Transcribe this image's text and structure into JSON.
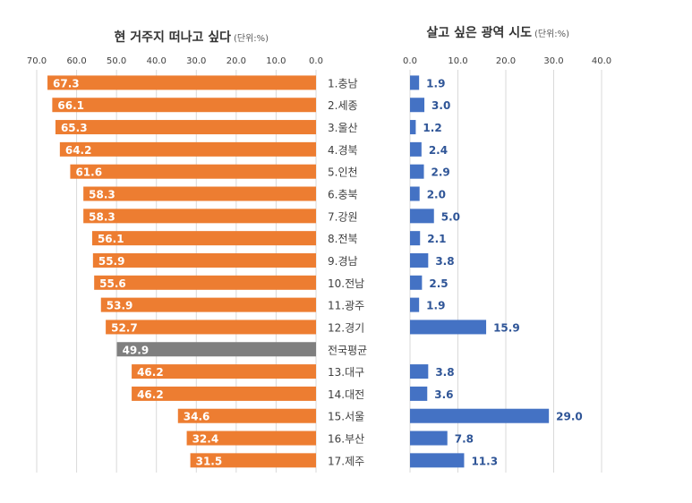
{
  "chart_data": [
    {
      "type": "bar",
      "orientation": "horizontal",
      "direction": "right-to-left",
      "title": "현 거주지 떠나고 싶다",
      "unit": "(단위:%)",
      "xlim": [
        0,
        70
      ],
      "ticks": [
        "70.0",
        "60.0",
        "50.0",
        "40.0",
        "30.0",
        "20.0",
        "10.0",
        "0.0"
      ],
      "tick_values": [
        70,
        60,
        50,
        40,
        30,
        20,
        10,
        0
      ],
      "categories": [
        "1.충남",
        "2.세종",
        "3.울산",
        "4.경북",
        "5.인천",
        "6.충북",
        "7.강원",
        "8.전북",
        "9.경남",
        "10.전남",
        "11.광주",
        "12.경기",
        "전국평균",
        "13.대구",
        "14.대전",
        "15.서울",
        "16.부산",
        "17.제주"
      ],
      "values": [
        67.3,
        66.1,
        65.3,
        64.2,
        61.6,
        58.3,
        58.3,
        56.1,
        55.9,
        55.6,
        53.9,
        52.7,
        49.9,
        46.2,
        46.2,
        34.6,
        32.4,
        31.5
      ],
      "labels": [
        "67.3",
        "66.1",
        "65.3",
        "64.2",
        "61.6",
        "58.3",
        "58.3",
        "56.1",
        "55.9",
        "55.6",
        "53.9",
        "52.7",
        "49.9",
        "46.2",
        "46.2",
        "34.6",
        "32.4",
        "31.5"
      ],
      "color": "#ED7D31",
      "highlight_color": "#7F7F7F",
      "highlight_index": 12,
      "grid": true
    },
    {
      "type": "bar",
      "orientation": "horizontal",
      "title": "살고 싶은 광역 시도",
      "unit": "(단위:%)",
      "xlim": [
        0,
        40
      ],
      "ticks": [
        "0.0",
        "10.0",
        "20.0",
        "30.0",
        "40.0"
      ],
      "tick_values": [
        0,
        10,
        20,
        30,
        40
      ],
      "values": [
        1.9,
        3.0,
        1.2,
        2.4,
        2.9,
        2.0,
        5.0,
        2.1,
        3.8,
        2.5,
        1.9,
        15.9,
        null,
        3.8,
        3.6,
        29.0,
        7.8,
        11.3
      ],
      "labels": [
        "1.9",
        "3.0",
        "1.2",
        "2.4",
        "2.9",
        "2.0",
        "5.0",
        "2.1",
        "3.8",
        "2.5",
        "1.9",
        "15.9",
        "",
        "3.8",
        "3.6",
        "29.0",
        "7.8",
        "11.3"
      ],
      "color": "#4472C4",
      "label_color": "#2F5597",
      "grid": true
    }
  ]
}
